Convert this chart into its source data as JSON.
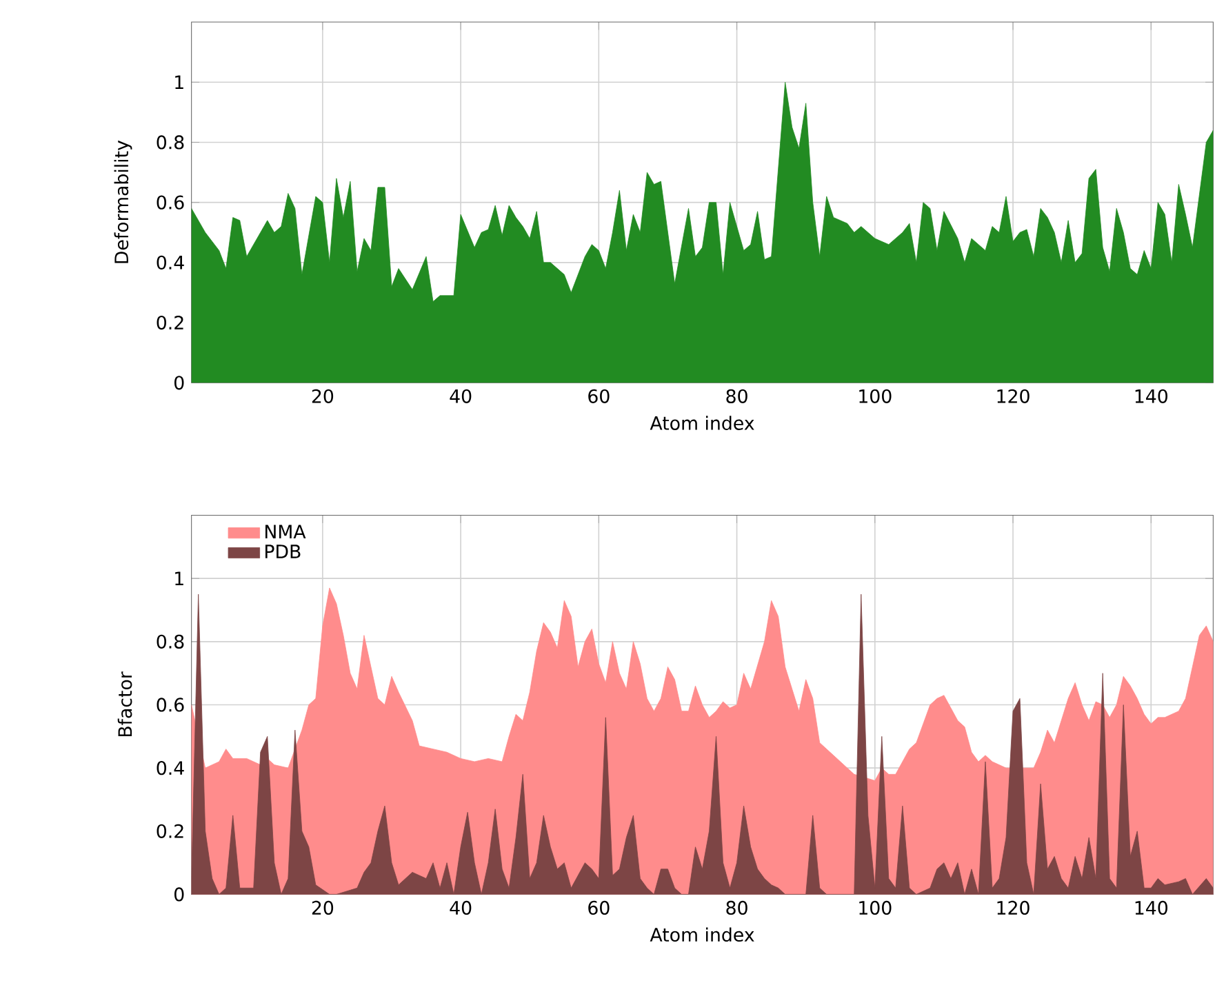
{
  "chart_data": [
    {
      "type": "area",
      "xlabel": "Atom index",
      "ylabel": "Deformability",
      "xlim": [
        1,
        149
      ],
      "ylim": [
        0,
        1.2
      ],
      "xticks": [
        20,
        40,
        60,
        80,
        100,
        120,
        140
      ],
      "yticks": [
        0,
        0.2,
        0.4,
        0.6,
        0.8,
        1
      ],
      "grid": true,
      "series": [
        {
          "color": "#228b22",
          "x": [
            1,
            3,
            5,
            6,
            7,
            8,
            9,
            11,
            12,
            13,
            14,
            15,
            16,
            17,
            19,
            20,
            21,
            22,
            23,
            24,
            25,
            26,
            27,
            28,
            29,
            30,
            31,
            33,
            35,
            36,
            37,
            39,
            40,
            42,
            43,
            44,
            45,
            46,
            47,
            48,
            49,
            50,
            51,
            52,
            53,
            55,
            56,
            58,
            59,
            60,
            61,
            62,
            63,
            64,
            65,
            66,
            67,
            68,
            69,
            71,
            73,
            74,
            75,
            76,
            77,
            78,
            79,
            81,
            82,
            83,
            84,
            85,
            87,
            88,
            89,
            90,
            91,
            92,
            93,
            94,
            96,
            97,
            98,
            100,
            102,
            104,
            105,
            106,
            107,
            108,
            109,
            110,
            112,
            113,
            114,
            115,
            116,
            117,
            118,
            119,
            120,
            121,
            122,
            123,
            124,
            125,
            126,
            127,
            128,
            129,
            130,
            131,
            132,
            133,
            134,
            135,
            136,
            137,
            138,
            139,
            140,
            141,
            142,
            143,
            144,
            145,
            146,
            148,
            149
          ],
          "values": [
            0.58,
            0.5,
            0.44,
            0.38,
            0.55,
            0.54,
            0.42,
            0.5,
            0.54,
            0.5,
            0.52,
            0.63,
            0.58,
            0.36,
            0.62,
            0.6,
            0.4,
            0.68,
            0.55,
            0.67,
            0.37,
            0.48,
            0.44,
            0.65,
            0.65,
            0.32,
            0.38,
            0.31,
            0.42,
            0.27,
            0.29,
            0.29,
            0.56,
            0.45,
            0.5,
            0.51,
            0.59,
            0.49,
            0.59,
            0.55,
            0.52,
            0.48,
            0.57,
            0.4,
            0.4,
            0.36,
            0.3,
            0.42,
            0.46,
            0.44,
            0.38,
            0.5,
            0.64,
            0.44,
            0.56,
            0.5,
            0.7,
            0.66,
            0.67,
            0.33,
            0.58,
            0.42,
            0.45,
            0.6,
            0.6,
            0.36,
            0.6,
            0.44,
            0.46,
            0.57,
            0.41,
            0.42,
            1.0,
            0.85,
            0.78,
            0.93,
            0.6,
            0.42,
            0.62,
            0.55,
            0.53,
            0.5,
            0.52,
            0.48,
            0.46,
            0.5,
            0.53,
            0.4,
            0.6,
            0.58,
            0.44,
            0.57,
            0.48,
            0.4,
            0.48,
            0.46,
            0.44,
            0.52,
            0.5,
            0.62,
            0.47,
            0.5,
            0.51,
            0.42,
            0.58,
            0.55,
            0.5,
            0.4,
            0.54,
            0.4,
            0.43,
            0.68,
            0.71,
            0.45,
            0.37,
            0.58,
            0.5,
            0.38,
            0.36,
            0.44,
            0.38,
            0.6,
            0.56,
            0.4,
            0.66,
            0.56,
            0.45,
            0.8,
            0.84
          ]
        }
      ]
    },
    {
      "type": "area",
      "xlabel": "Atom index",
      "ylabel": "Bfactor",
      "xlim": [
        1,
        149
      ],
      "ylim": [
        0,
        1.2
      ],
      "xticks": [
        20,
        40,
        60,
        80,
        100,
        120,
        140
      ],
      "yticks": [
        0,
        0.2,
        0.4,
        0.6,
        0.8,
        1
      ],
      "grid": true,
      "legend": "top left",
      "series": [
        {
          "name": "NMA",
          "color": "#ff8c8c",
          "x": [
            1,
            2,
            3,
            5,
            6,
            7,
            9,
            11,
            12,
            13,
            15,
            17,
            18,
            19,
            20,
            21,
            22,
            23,
            24,
            25,
            26,
            27,
            28,
            29,
            30,
            31,
            33,
            34,
            36,
            38,
            40,
            42,
            44,
            46,
            47,
            48,
            49,
            50,
            51,
            52,
            53,
            54,
            55,
            56,
            57,
            58,
            59,
            60,
            61,
            62,
            63,
            64,
            65,
            66,
            67,
            68,
            69,
            70,
            71,
            72,
            73,
            74,
            75,
            76,
            77,
            78,
            79,
            80,
            81,
            82,
            84,
            85,
            86,
            87,
            88,
            89,
            90,
            91,
            92,
            94,
            96,
            97,
            98,
            100,
            101,
            102,
            103,
            104,
            105,
            106,
            108,
            109,
            110,
            111,
            112,
            113,
            114,
            115,
            116,
            117,
            118,
            119,
            121,
            122,
            123,
            124,
            125,
            126,
            127,
            128,
            129,
            130,
            131,
            132,
            133,
            134,
            135,
            136,
            137,
            138,
            139,
            140,
            141,
            142,
            144,
            145,
            146,
            147,
            148,
            149
          ],
          "values": [
            0.6,
            null,
            0.4,
            0.42,
            0.46,
            0.43,
            0.43,
            0.41,
            0.43,
            0.41,
            0.4,
            0.52,
            0.6,
            0.62,
            0.85,
            0.97,
            0.92,
            0.82,
            0.7,
            0.65,
            0.82,
            0.72,
            0.62,
            0.6,
            0.69,
            0.64,
            0.55,
            0.47,
            0.46,
            0.45,
            0.43,
            0.42,
            0.43,
            0.42,
            0.5,
            0.57,
            0.55,
            0.64,
            0.77,
            0.86,
            0.83,
            0.78,
            0.93,
            0.88,
            0.72,
            0.8,
            0.84,
            0.73,
            0.67,
            0.8,
            0.7,
            0.65,
            0.8,
            0.73,
            0.62,
            0.58,
            0.62,
            0.72,
            0.68,
            0.58,
            0.58,
            0.66,
            0.6,
            0.56,
            0.58,
            0.61,
            0.59,
            0.6,
            0.7,
            0.65,
            0.8,
            0.93,
            0.88,
            0.72,
            0.65,
            0.58,
            0.68,
            0.62,
            0.48,
            0.44,
            0.4,
            0.38,
            null,
            0.36,
            0.4,
            0.38,
            0.38,
            0.42,
            0.46,
            0.48,
            0.6,
            0.62,
            0.63,
            0.59,
            0.55,
            0.53,
            0.45,
            0.42,
            0.44,
            0.42,
            0.41,
            0.4,
            null,
            0.4,
            0.4,
            0.45,
            0.52,
            0.48,
            0.55,
            0.62,
            0.67,
            0.6,
            0.55,
            0.61,
            0.6,
            0.56,
            0.6,
            0.69,
            0.66,
            0.62,
            0.57,
            0.54,
            0.56,
            0.56,
            0.58,
            0.62,
            0.72,
            0.82,
            0.85,
            0.8
          ]
        },
        {
          "name": "PDB",
          "color": "#7d4545",
          "x": [
            1,
            2,
            3,
            4,
            5,
            6,
            7,
            8,
            10,
            11,
            12,
            13,
            14,
            15,
            16,
            17,
            18,
            19,
            21,
            22,
            25,
            26,
            27,
            28,
            29,
            30,
            31,
            33,
            35,
            36,
            37,
            38,
            39,
            40,
            41,
            42,
            43,
            44,
            45,
            46,
            47,
            48,
            49,
            50,
            51,
            52,
            53,
            54,
            55,
            56,
            57,
            58,
            59,
            60,
            61,
            62,
            63,
            64,
            65,
            66,
            67,
            68,
            69,
            70,
            71,
            72,
            73,
            74,
            75,
            76,
            77,
            78,
            79,
            80,
            81,
            82,
            83,
            84,
            85,
            86,
            87,
            90,
            91,
            92,
            93,
            97,
            98,
            99,
            100,
            101,
            102,
            103,
            104,
            105,
            106,
            108,
            109,
            110,
            111,
            112,
            113,
            114,
            115,
            116,
            117,
            118,
            119,
            120,
            121,
            122,
            123,
            124,
            125,
            126,
            127,
            128,
            129,
            130,
            131,
            132,
            133,
            134,
            135,
            136,
            137,
            138,
            139,
            140,
            141,
            142,
            144,
            145,
            146,
            148,
            149
          ],
          "values": [
            0.05,
            0.95,
            0.2,
            0.05,
            0.0,
            0.02,
            0.25,
            0.02,
            0.02,
            0.45,
            0.5,
            0.1,
            0.0,
            0.05,
            0.52,
            0.2,
            0.15,
            0.03,
            0.0,
            0.0,
            0.02,
            0.07,
            0.1,
            0.2,
            0.28,
            0.1,
            0.03,
            0.07,
            0.05,
            0.1,
            0.02,
            0.1,
            0.0,
            0.15,
            0.26,
            0.1,
            0.0,
            0.1,
            0.27,
            0.08,
            0.02,
            0.18,
            0.38,
            0.05,
            0.1,
            0.25,
            0.15,
            0.08,
            0.1,
            0.02,
            0.06,
            0.1,
            0.08,
            0.05,
            0.56,
            0.06,
            0.08,
            0.18,
            0.25,
            0.05,
            0.02,
            0.0,
            0.08,
            0.08,
            0.02,
            0.0,
            0.0,
            0.15,
            0.08,
            0.2,
            0.5,
            0.1,
            0.02,
            0.1,
            0.28,
            0.15,
            0.08,
            0.05,
            0.03,
            0.02,
            0.0,
            0.0,
            0.25,
            0.02,
            0.0,
            0.0,
            0.95,
            0.25,
            0.02,
            0.5,
            0.05,
            0.02,
            0.28,
            0.02,
            0.0,
            0.02,
            0.08,
            0.1,
            0.05,
            0.1,
            0.0,
            0.08,
            0.0,
            0.42,
            0.02,
            0.05,
            0.18,
            0.58,
            0.62,
            0.1,
            0.0,
            0.35,
            0.08,
            0.12,
            0.05,
            0.02,
            0.12,
            0.05,
            0.18,
            0.05,
            0.7,
            0.05,
            0.02,
            0.6,
            0.12,
            0.2,
            0.02,
            0.02,
            0.05,
            0.03,
            0.04,
            0.05,
            0.0,
            0.05,
            0.02
          ]
        }
      ]
    }
  ]
}
